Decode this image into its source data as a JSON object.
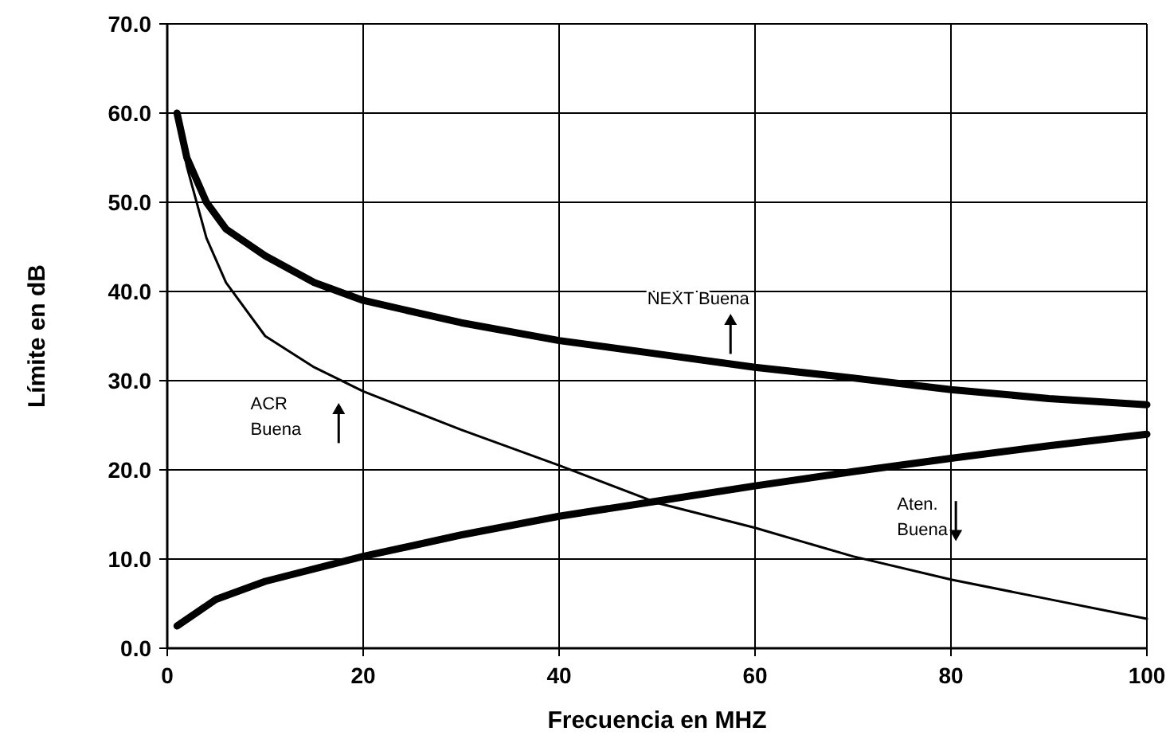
{
  "chart_data": {
    "type": "line",
    "xlabel": "Frecuencia en MHZ",
    "ylabel": "Límite en dB",
    "xlim": [
      0,
      100
    ],
    "xticks": [
      0,
      20,
      40,
      60,
      80,
      100
    ],
    "ylim": [
      0,
      70
    ],
    "yticks": [
      {
        "value": 0,
        "label": "0.0"
      },
      {
        "value": 10,
        "label": "10.0"
      },
      {
        "value": 20,
        "label": "20.0"
      },
      {
        "value": 30,
        "label": "30.0"
      },
      {
        "value": 40,
        "label": "40.0"
      },
      {
        "value": 50,
        "label": "50.0"
      },
      {
        "value": 60,
        "label": "60.0"
      },
      {
        "value": 70,
        "label": "70.0"
      }
    ],
    "grid": true,
    "marker": "none",
    "series": [
      {
        "color": "#000000",
        "x": [
          1,
          2,
          4,
          6,
          10,
          15,
          20,
          30,
          40,
          50,
          60,
          70,
          80,
          90,
          100
        ],
        "values": [
          60,
          55,
          50,
          47,
          44,
          41,
          39,
          36.5,
          34.5,
          33,
          31.5,
          30.3,
          29,
          28,
          27.3
        ]
      },
      {
        "color": "#000000",
        "x": [
          1,
          5,
          10,
          20,
          30,
          40,
          50,
          60,
          70,
          80,
          90,
          100
        ],
        "values": [
          2.5,
          5.5,
          7.5,
          10.3,
          12.7,
          14.8,
          16.5,
          18.2,
          19.8,
          21.3,
          22.7,
          24
        ]
      },
      {
        "color": "#000000",
        "x": [
          1,
          2,
          4,
          6,
          10,
          15,
          20,
          30,
          40,
          50,
          60,
          70,
          80,
          90,
          100
        ],
        "values": [
          60,
          54,
          46,
          41,
          35,
          31.5,
          28.8,
          24.5,
          20.5,
          16.3,
          13.5,
          10.3,
          7.7,
          5.5,
          3.3
        ]
      }
    ],
    "annotations": [
      "NEXT Buena",
      "ACR Buena",
      "Aten. Buena"
    ]
  }
}
